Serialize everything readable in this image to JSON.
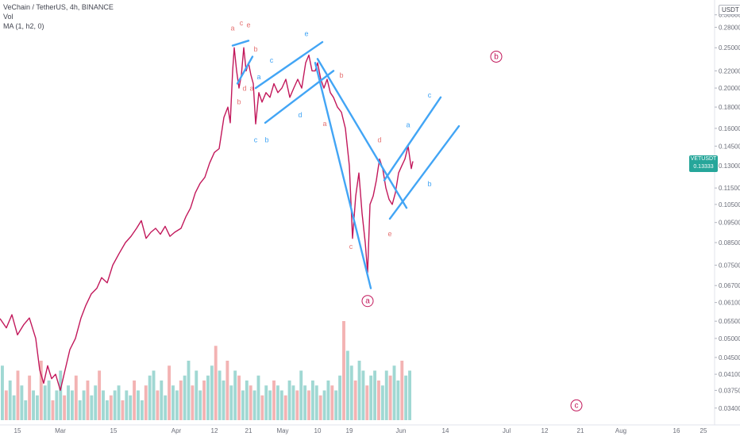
{
  "legend": {
    "title": "VeChain / TetherUS, 4h, BINANCE",
    "vol": "Vol",
    "ma": "MA (1, h2, 0)"
  },
  "currency_badge": "USDT",
  "price_tag": {
    "symbol": "VETUSDT",
    "price": "0.13333",
    "countdown": "02:50:48",
    "color": "#26a69a"
  },
  "colors": {
    "price": "#c2185b",
    "channels": "#42a5f5",
    "wave_red": "#e57373",
    "wave_blue": "#42a5f5",
    "circle": "#c2185b"
  },
  "chart_data": {
    "type": "line",
    "y_scale": "log",
    "ylim": [
      0.0318,
      0.32
    ],
    "x_tick_labels": [
      "15",
      "Mar",
      "15",
      "Apr",
      "12",
      "21",
      "May",
      "10",
      "19",
      "Jun",
      "14",
      "Jul",
      "12",
      "21",
      "Aug",
      "16",
      "25"
    ],
    "y_tick_labels": [
      "0.30000",
      "0.28000",
      "0.25000",
      "0.22000",
      "0.20000",
      "0.18000",
      "0.16000",
      "0.14500",
      "0.13000",
      "0.11500",
      "0.10500",
      "0.09500",
      "0.08500",
      "0.07500",
      "0.06700",
      "0.06100",
      "0.05500",
      "0.05000",
      "0.04500",
      "0.04100",
      "0.03750",
      "0.03400"
    ],
    "y_ticks": [
      0.3,
      0.28,
      0.25,
      0.22,
      0.2,
      0.18,
      0.16,
      0.145,
      0.13,
      0.115,
      0.105,
      0.095,
      0.085,
      0.075,
      0.067,
      0.061,
      0.055,
      0.05,
      0.045,
      0.041,
      0.0375,
      0.034
    ],
    "price_series": {
      "name": "VETUSDT",
      "points": [
        [
          0,
          0.0558
        ],
        [
          8,
          0.053
        ],
        [
          15,
          0.057
        ],
        [
          22,
          0.051
        ],
        [
          30,
          0.054
        ],
        [
          37,
          0.056
        ],
        [
          45,
          0.05
        ],
        [
          50,
          0.042
        ],
        [
          55,
          0.039
        ],
        [
          60,
          0.043
        ],
        [
          65,
          0.04
        ],
        [
          70,
          0.041
        ],
        [
          76,
          0.0375
        ],
        [
          82,
          0.042
        ],
        [
          88,
          0.047
        ],
        [
          95,
          0.05
        ],
        [
          102,
          0.056
        ],
        [
          108,
          0.06
        ],
        [
          115,
          0.064
        ],
        [
          122,
          0.066
        ],
        [
          128,
          0.07
        ],
        [
          135,
          0.068
        ],
        [
          142,
          0.075
        ],
        [
          150,
          0.08
        ],
        [
          158,
          0.085
        ],
        [
          165,
          0.088
        ],
        [
          172,
          0.092
        ],
        [
          178,
          0.096
        ],
        [
          184,
          0.087
        ],
        [
          190,
          0.09
        ],
        [
          196,
          0.092
        ],
        [
          202,
          0.089
        ],
        [
          208,
          0.093
        ],
        [
          214,
          0.088
        ],
        [
          220,
          0.09
        ],
        [
          228,
          0.092
        ],
        [
          234,
          0.098
        ],
        [
          240,
          0.103
        ],
        [
          246,
          0.112
        ],
        [
          252,
          0.118
        ],
        [
          258,
          0.122
        ],
        [
          264,
          0.132
        ],
        [
          270,
          0.14
        ],
        [
          276,
          0.143
        ],
        [
          282,
          0.17
        ],
        [
          287,
          0.18
        ],
        [
          290,
          0.165
        ],
        [
          293,
          0.22
        ],
        [
          295,
          0.25
        ],
        [
          298,
          0.22
        ],
        [
          301,
          0.2
        ],
        [
          304,
          0.215
        ],
        [
          307,
          0.25
        ],
        [
          310,
          0.22
        ],
        [
          313,
          0.23
        ],
        [
          316,
          0.215
        ],
        [
          319,
          0.205
        ],
        [
          322,
          0.164
        ],
        [
          326,
          0.195
        ],
        [
          330,
          0.185
        ],
        [
          335,
          0.195
        ],
        [
          340,
          0.19
        ],
        [
          345,
          0.205
        ],
        [
          350,
          0.195
        ],
        [
          355,
          0.2
        ],
        [
          360,
          0.21
        ],
        [
          365,
          0.19
        ],
        [
          370,
          0.2
        ],
        [
          375,
          0.21
        ],
        [
          380,
          0.2
        ],
        [
          385,
          0.23
        ],
        [
          389,
          0.24
        ],
        [
          393,
          0.22
        ],
        [
          397,
          0.22
        ],
        [
          400,
          0.23
        ],
        [
          404,
          0.21
        ],
        [
          408,
          0.2
        ],
        [
          412,
          0.21
        ],
        [
          416,
          0.195
        ],
        [
          420,
          0.19
        ],
        [
          425,
          0.18
        ],
        [
          430,
          0.175
        ],
        [
          435,
          0.16
        ],
        [
          440,
          0.13
        ],
        [
          444,
          0.087
        ],
        [
          448,
          0.11
        ],
        [
          452,
          0.125
        ],
        [
          456,
          0.1
        ],
        [
          460,
          0.085
        ],
        [
          463,
          0.072
        ],
        [
          466,
          0.105
        ],
        [
          470,
          0.11
        ],
        [
          474,
          0.12
        ],
        [
          478,
          0.135
        ],
        [
          482,
          0.128
        ],
        [
          486,
          0.115
        ],
        [
          490,
          0.108
        ],
        [
          494,
          0.105
        ],
        [
          498,
          0.112
        ],
        [
          502,
          0.125
        ],
        [
          506,
          0.13
        ],
        [
          510,
          0.135
        ],
        [
          514,
          0.145
        ],
        [
          518,
          0.128
        ],
        [
          520,
          0.1333
        ]
      ]
    },
    "volume_series": {
      "name": "Vol",
      "values": [
        0.55,
        0.3,
        0.4,
        0.25,
        0.5,
        0.35,
        0.2,
        0.45,
        0.3,
        0.25,
        0.6,
        0.35,
        0.4,
        0.2,
        0.3,
        0.5,
        0.25,
        0.35,
        0.3,
        0.45,
        0.2,
        0.3,
        0.4,
        0.25,
        0.35,
        0.5,
        0.3,
        0.2,
        0.25,
        0.3,
        0.35,
        0.2,
        0.3,
        0.25,
        0.4,
        0.3,
        0.2,
        0.35,
        0.45,
        0.5,
        0.3,
        0.4,
        0.25,
        0.55,
        0.35,
        0.3,
        0.4,
        0.45,
        0.6,
        0.35,
        0.5,
        0.3,
        0.4,
        0.45,
        0.55,
        0.75,
        0.5,
        0.4,
        0.6,
        0.35,
        0.5,
        0.45,
        0.3,
        0.4,
        0.35,
        0.3,
        0.45,
        0.25,
        0.35,
        0.3,
        0.4,
        0.35,
        0.3,
        0.25,
        0.4,
        0.35,
        0.3,
        0.5,
        0.35,
        0.3,
        0.4,
        0.35,
        0.25,
        0.3,
        0.4,
        0.35,
        0.3,
        0.45,
        1.0,
        0.7,
        0.55,
        0.4,
        0.6,
        0.5,
        0.35,
        0.45,
        0.5,
        0.4,
        0.35,
        0.5,
        0.45,
        0.55,
        0.4,
        0.6,
        0.45,
        0.5
      ],
      "up_color": "#80cbc4",
      "down_color": "#ef9a9a"
    },
    "annotations": {
      "lines": [
        {
          "from": [
            293,
            0.253
          ],
          "to": [
            313,
            0.26
          ]
        },
        {
          "from": [
            299,
            0.205
          ],
          "to": [
            318,
            0.238
          ]
        },
        {
          "from": [
            322,
            0.2
          ],
          "to": [
            406,
            0.258
          ]
        },
        {
          "from": [
            334,
            0.165
          ],
          "to": [
            420,
            0.22
          ]
        },
        {
          "from": [
            400,
            0.235
          ],
          "to": [
            512,
            0.103
          ]
        },
        {
          "from": [
            397,
            0.23
          ],
          "to": [
            467,
            0.066
          ]
        },
        {
          "from": [
            484,
            0.12
          ],
          "to": [
            555,
            0.19
          ]
        },
        {
          "from": [
            491,
            0.097
          ],
          "to": [
            578,
            0.162
          ]
        }
      ],
      "labels": [
        {
          "text": "a",
          "x": 293,
          "y": 0.275,
          "color": "wave_red"
        },
        {
          "text": "c",
          "x": 304,
          "y": 0.283,
          "color": "wave_red"
        },
        {
          "text": "e",
          "x": 313,
          "y": 0.28,
          "color": "wave_red"
        },
        {
          "text": "b",
          "x": 322,
          "y": 0.245,
          "color": "wave_red"
        },
        {
          "text": "d",
          "x": 308,
          "y": 0.197,
          "color": "wave_red"
        },
        {
          "text": "a",
          "x": 317,
          "y": 0.197,
          "color": "wave_red"
        },
        {
          "text": "b",
          "x": 301,
          "y": 0.183,
          "color": "wave_red"
        },
        {
          "text": "a",
          "x": 326,
          "y": 0.21,
          "color": "wave_blue"
        },
        {
          "text": "c",
          "x": 342,
          "y": 0.23,
          "color": "wave_blue"
        },
        {
          "text": "e",
          "x": 386,
          "y": 0.267,
          "color": "wave_blue"
        },
        {
          "text": "d",
          "x": 378,
          "y": 0.17,
          "color": "wave_blue"
        },
        {
          "text": "c",
          "x": 322,
          "y": 0.148,
          "color": "wave_blue"
        },
        {
          "text": "b",
          "x": 336,
          "y": 0.148,
          "color": "wave_blue"
        },
        {
          "text": "b",
          "x": 430,
          "y": 0.212,
          "color": "wave_red"
        },
        {
          "text": "a",
          "x": 409,
          "y": 0.162,
          "color": "wave_red"
        },
        {
          "text": "d",
          "x": 478,
          "y": 0.148,
          "color": "wave_red"
        },
        {
          "text": "c",
          "x": 442,
          "y": 0.082,
          "color": "wave_red"
        },
        {
          "text": "e",
          "x": 491,
          "y": 0.088,
          "color": "wave_red"
        },
        {
          "text": "a",
          "x": 514,
          "y": 0.161,
          "color": "wave_blue"
        },
        {
          "text": "c",
          "x": 541,
          "y": 0.19,
          "color": "wave_blue"
        },
        {
          "text": "b",
          "x": 541,
          "y": 0.116,
          "color": "wave_blue"
        }
      ],
      "circled": [
        {
          "text": "b",
          "x": 625,
          "y": 0.238
        },
        {
          "text": "a",
          "x": 463,
          "y": 0.0615
        },
        {
          "text": "c",
          "x": 726,
          "y": 0.0345
        }
      ]
    }
  }
}
